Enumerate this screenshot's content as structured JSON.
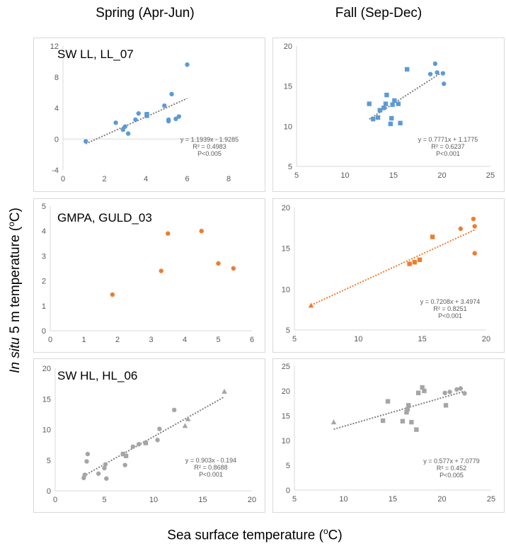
{
  "headers": {
    "spring": "Spring (Apr-Jun)",
    "fall": "Fall (Sep-Dec)",
    "ylabel_italic": "In situ",
    "ylabel_rest": " 5 m temperature (",
    "ylabel_sup": "o",
    "ylabel_end": "C)",
    "xlabel_main": "Sea surface temperature (",
    "xlabel_sup": "o",
    "xlabel_end": "C)"
  },
  "colors": {
    "blue": "#5b9bd5",
    "orange": "#ed7d31",
    "gray": "#a5a5a5",
    "trend": "#7f7f7f"
  },
  "chart_data": [
    {
      "id": "p1",
      "type": "scatter",
      "label": "SW LL, LL_07",
      "color": "#5b9bd5",
      "xlim": [
        0,
        8
      ],
      "xticks": [
        0,
        2,
        4,
        6,
        8
      ],
      "ylim": [
        -4,
        12
      ],
      "yticks": [
        -4,
        0,
        4,
        8,
        12
      ],
      "points": [
        {
          "x": 1.1,
          "y": -0.3,
          "m": "c"
        },
        {
          "x": 2.55,
          "y": 2.1,
          "m": "c"
        },
        {
          "x": 2.9,
          "y": 1.2,
          "m": "c"
        },
        {
          "x": 3.0,
          "y": 1.6,
          "m": "c"
        },
        {
          "x": 3.15,
          "y": 0.7,
          "m": "c"
        },
        {
          "x": 3.5,
          "y": 2.5,
          "m": "c"
        },
        {
          "x": 3.65,
          "y": 3.3,
          "m": "c"
        },
        {
          "x": 4.05,
          "y": 3.0,
          "m": "s"
        },
        {
          "x": 4.05,
          "y": 3.2,
          "m": "s"
        },
        {
          "x": 4.9,
          "y": 4.3,
          "m": "c"
        },
        {
          "x": 5.1,
          "y": 2.3,
          "m": "c"
        },
        {
          "x": 5.1,
          "y": 2.5,
          "m": "c"
        },
        {
          "x": 5.25,
          "y": 5.8,
          "m": "c"
        },
        {
          "x": 5.45,
          "y": 2.6,
          "m": "c"
        },
        {
          "x": 5.6,
          "y": 2.9,
          "m": "c"
        },
        {
          "x": 6.0,
          "y": 9.6,
          "m": "c"
        }
      ],
      "trend": {
        "x0": 1.1,
        "x1": 6.0,
        "slope": 1.1939,
        "intercept": -1.9285
      },
      "eq_lines": [
        "y = 1.1939x - 1.9285",
        "R² = 0.4983",
        "P<0.005"
      ]
    },
    {
      "id": "p2",
      "type": "scatter",
      "label": "",
      "color": "#5b9bd5",
      "xlim": [
        5,
        25
      ],
      "xticks": [
        5,
        10,
        15,
        20,
        25
      ],
      "ylim": [
        5,
        20
      ],
      "yticks": [
        5,
        10,
        15,
        20
      ],
      "points": [
        {
          "x": 12.5,
          "y": 12.8,
          "m": "s"
        },
        {
          "x": 12.9,
          "y": 10.9,
          "m": "s"
        },
        {
          "x": 13.4,
          "y": 11.1,
          "m": "s"
        },
        {
          "x": 13.6,
          "y": 12.0,
          "m": "s"
        },
        {
          "x": 14.0,
          "y": 12.3,
          "m": "s"
        },
        {
          "x": 14.2,
          "y": 12.8,
          "m": "s"
        },
        {
          "x": 14.3,
          "y": 13.9,
          "m": "s"
        },
        {
          "x": 14.7,
          "y": 10.3,
          "m": "s"
        },
        {
          "x": 14.8,
          "y": 11.0,
          "m": "s"
        },
        {
          "x": 14.9,
          "y": 12.7,
          "m": "s"
        },
        {
          "x": 15.1,
          "y": 13.2,
          "m": "s"
        },
        {
          "x": 15.5,
          "y": 12.8,
          "m": "s"
        },
        {
          "x": 15.7,
          "y": 10.4,
          "m": "s"
        },
        {
          "x": 16.4,
          "y": 17.1,
          "m": "s"
        },
        {
          "x": 18.8,
          "y": 16.5,
          "m": "c"
        },
        {
          "x": 19.3,
          "y": 17.8,
          "m": "c"
        },
        {
          "x": 19.5,
          "y": 16.7,
          "m": "c"
        },
        {
          "x": 20.1,
          "y": 16.6,
          "m": "c"
        },
        {
          "x": 20.2,
          "y": 15.3,
          "m": "c"
        }
      ],
      "trend": {
        "x0": 12.5,
        "x1": 19.8,
        "slope": 0.7771,
        "intercept": 1.1775
      },
      "eq_lines": [
        "y = 0.7771x + 1.1775",
        "R² = 0.6237",
        "P<0.001"
      ]
    },
    {
      "id": "p3",
      "type": "scatter",
      "label": "GMPA, GULD_03",
      "color": "#ed7d31",
      "xlim": [
        0,
        6
      ],
      "xticks": [
        0,
        1,
        2,
        3,
        4,
        5,
        6
      ],
      "ylim": [
        0,
        5
      ],
      "yticks": [
        0,
        1,
        2,
        3,
        4,
        5
      ],
      "points": [
        {
          "x": 1.85,
          "y": 1.45,
          "m": "c"
        },
        {
          "x": 3.3,
          "y": 2.4,
          "m": "c"
        },
        {
          "x": 3.5,
          "y": 3.9,
          "m": "c"
        },
        {
          "x": 4.5,
          "y": 4.0,
          "m": "c"
        },
        {
          "x": 5.0,
          "y": 2.7,
          "m": "c"
        },
        {
          "x": 5.45,
          "y": 2.5,
          "m": "c"
        }
      ],
      "trend": null,
      "eq_lines": []
    },
    {
      "id": "p4",
      "type": "scatter",
      "label": "",
      "color": "#ed7d31",
      "xlim": [
        5,
        20
      ],
      "xticks": [
        5,
        10,
        15,
        20
      ],
      "ylim": [
        5,
        20
      ],
      "yticks": [
        5,
        10,
        15,
        20
      ],
      "points": [
        {
          "x": 6.3,
          "y": 8.0,
          "m": "t"
        },
        {
          "x": 14.0,
          "y": 13.1,
          "m": "s"
        },
        {
          "x": 14.4,
          "y": 13.3,
          "m": "s"
        },
        {
          "x": 14.8,
          "y": 13.6,
          "m": "s"
        },
        {
          "x": 15.8,
          "y": 16.4,
          "m": "s"
        },
        {
          "x": 18.0,
          "y": 17.4,
          "m": "c"
        },
        {
          "x": 19.0,
          "y": 18.6,
          "m": "c"
        },
        {
          "x": 19.1,
          "y": 17.7,
          "m": "c"
        },
        {
          "x": 19.1,
          "y": 14.4,
          "m": "c"
        }
      ],
      "trend": {
        "x0": 6.3,
        "x1": 19.1,
        "slope": 0.7208,
        "intercept": 3.4974
      },
      "eq_lines": [
        "y = 0.7208x + 3.4974",
        "R² = 0.8251",
        "P<0.001"
      ]
    },
    {
      "id": "p5",
      "type": "scatter",
      "label": "SW HL, HL_06",
      "color": "#a5a5a5",
      "xlim": [
        0,
        20
      ],
      "xticks": [
        0,
        5,
        10,
        15,
        20
      ],
      "ylim": [
        0,
        20
      ],
      "yticks": [
        0,
        5,
        10,
        15,
        20
      ],
      "points": [
        {
          "x": 2.9,
          "y": 2.1,
          "m": "c"
        },
        {
          "x": 3.0,
          "y": 2.6,
          "m": "c"
        },
        {
          "x": 3.2,
          "y": 4.8,
          "m": "c"
        },
        {
          "x": 3.3,
          "y": 6.0,
          "m": "c"
        },
        {
          "x": 4.4,
          "y": 2.8,
          "m": "c"
        },
        {
          "x": 5.0,
          "y": 3.7,
          "m": "c"
        },
        {
          "x": 5.1,
          "y": 4.3,
          "m": "c"
        },
        {
          "x": 5.2,
          "y": 2.0,
          "m": "c"
        },
        {
          "x": 6.9,
          "y": 6.0,
          "m": "s"
        },
        {
          "x": 7.1,
          "y": 4.2,
          "m": "c"
        },
        {
          "x": 7.2,
          "y": 5.7,
          "m": "s"
        },
        {
          "x": 7.9,
          "y": 7.2,
          "m": "c"
        },
        {
          "x": 8.5,
          "y": 7.6,
          "m": "c"
        },
        {
          "x": 9.2,
          "y": 7.8,
          "m": "s"
        },
        {
          "x": 10.4,
          "y": 8.3,
          "m": "c"
        },
        {
          "x": 10.6,
          "y": 10.1,
          "m": "c"
        },
        {
          "x": 12.1,
          "y": 13.2,
          "m": "c"
        },
        {
          "x": 13.2,
          "y": 10.6,
          "m": "t"
        },
        {
          "x": 13.5,
          "y": 11.7,
          "m": "t"
        },
        {
          "x": 17.2,
          "y": 16.2,
          "m": "t"
        }
      ],
      "trend": {
        "x0": 2.9,
        "x1": 17.2,
        "slope": 0.903,
        "intercept": -0.194
      },
      "eq_lines": [
        "y = 0.903x - 0.194",
        "R² = 0.8688",
        "P<0.001"
      ]
    },
    {
      "id": "p6",
      "type": "scatter",
      "label": "",
      "color": "#a5a5a5",
      "xlim": [
        5,
        25
      ],
      "xticks": [
        5,
        10,
        15,
        20,
        25
      ],
      "ylim": [
        0,
        25
      ],
      "yticks": [
        0,
        5,
        10,
        15,
        20,
        25
      ],
      "points": [
        {
          "x": 9.0,
          "y": 13.7,
          "m": "t"
        },
        {
          "x": 14.0,
          "y": 14.0,
          "m": "s"
        },
        {
          "x": 14.5,
          "y": 17.9,
          "m": "s"
        },
        {
          "x": 16.0,
          "y": 13.9,
          "m": "s"
        },
        {
          "x": 16.4,
          "y": 15.7,
          "m": "s"
        },
        {
          "x": 16.5,
          "y": 16.3,
          "m": "s"
        },
        {
          "x": 16.6,
          "y": 17.1,
          "m": "s"
        },
        {
          "x": 16.9,
          "y": 13.7,
          "m": "s"
        },
        {
          "x": 17.4,
          "y": 12.2,
          "m": "s"
        },
        {
          "x": 17.6,
          "y": 19.6,
          "m": "s"
        },
        {
          "x": 18.0,
          "y": 20.7,
          "m": "s"
        },
        {
          "x": 18.2,
          "y": 20.0,
          "m": "s"
        },
        {
          "x": 20.3,
          "y": 19.6,
          "m": "c"
        },
        {
          "x": 20.4,
          "y": 17.1,
          "m": "s"
        },
        {
          "x": 20.8,
          "y": 19.8,
          "m": "c"
        },
        {
          "x": 21.5,
          "y": 20.3,
          "m": "c"
        },
        {
          "x": 21.9,
          "y": 20.5,
          "m": "c"
        },
        {
          "x": 22.3,
          "y": 19.5,
          "m": "c"
        }
      ],
      "trend": {
        "x0": 9.0,
        "x1": 22.3,
        "slope": 0.577,
        "intercept": 7.0779
      },
      "eq_lines": [
        "y = 0.577x + 7.0779",
        "R² = 0.452",
        "P<0.005"
      ]
    }
  ]
}
